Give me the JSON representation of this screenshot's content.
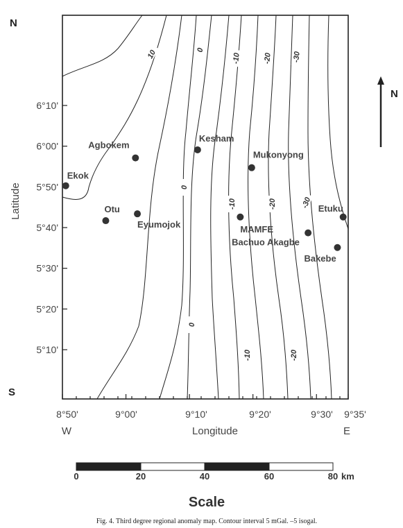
{
  "map": {
    "corner_labels": {
      "north": "N",
      "south": "S"
    },
    "north_arrow_label": "N",
    "axis_titles": {
      "y": "Latitude",
      "x": "Longitude"
    },
    "x_direction": {
      "west": "W",
      "east": "E"
    },
    "lat_ticks": [
      {
        "label": "6°10'",
        "lat": 6.1667
      },
      {
        "label": "6°00'",
        "lat": 6.0
      },
      {
        "label": "5°50'",
        "lat": 5.8333
      },
      {
        "label": "5°40'",
        "lat": 5.6667
      },
      {
        "label": "5°30'",
        "lat": 5.5
      },
      {
        "label": "5°20'",
        "lat": 5.3333
      },
      {
        "label": "5°10'",
        "lat": 5.1667
      }
    ],
    "lon_ticks": [
      {
        "label": "8°50'",
        "lon": 8.8333
      },
      {
        "label": "9°00'",
        "lon": 9.0
      },
      {
        "label": "9°10'",
        "lon": 9.1667
      },
      {
        "label": "9°20'",
        "lon": 9.3333
      },
      {
        "label": "9°30'",
        "lon": 9.5
      },
      {
        "label": "9°35'",
        "lon": 9.5833
      }
    ],
    "towns": [
      {
        "name": "Ekok",
        "lat": 5.838,
        "lon": 8.842
      },
      {
        "name": "Agbokem",
        "lat": 5.952,
        "lon": 9.025
      },
      {
        "name": "Otu",
        "lat": 5.695,
        "lon": 8.947
      },
      {
        "name": "Eyumojok",
        "lat": 5.723,
        "lon": 9.03
      },
      {
        "name": "Kesham",
        "lat": 5.985,
        "lon": 9.188
      },
      {
        "name": "Mukonyong",
        "lat": 5.912,
        "lon": 9.33
      },
      {
        "name": "MAMFE",
        "lat": 5.71,
        "lon": 9.3
      },
      {
        "name": "Etuku",
        "lat": 5.71,
        "lon": 9.57
      },
      {
        "name": "Bachuo Akagbe",
        "lat": 5.645,
        "lon": 9.478
      },
      {
        "name": "Bakebe",
        "lat": 5.585,
        "lon": 9.555
      }
    ],
    "contour_labels": [
      "10",
      "0",
      "-10",
      "-20",
      "-30",
      "0",
      "-10",
      "-20",
      "-30",
      "0",
      "-10",
      "-20"
    ]
  },
  "scale": {
    "title": "Scale",
    "unit": "km",
    "ticks": [
      "0",
      "20",
      "40",
      "60",
      "80"
    ]
  },
  "caption": "Fig. 4. Third degree regional anomaly map. Contour interval 5 mGal. –5 isogal."
}
